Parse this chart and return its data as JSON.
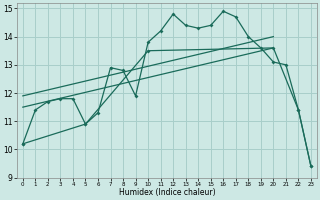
{
  "title": "",
  "xlabel": "Humidex (Indice chaleur)",
  "xlim": [
    -0.5,
    23.5
  ],
  "ylim": [
    9,
    15.2
  ],
  "yticks": [
    9,
    10,
    11,
    12,
    13,
    14,
    15
  ],
  "xticks": [
    0,
    1,
    2,
    3,
    4,
    5,
    6,
    7,
    8,
    9,
    10,
    11,
    12,
    13,
    14,
    15,
    16,
    17,
    18,
    19,
    20,
    21,
    22,
    23
  ],
  "bg_color": "#cde8e4",
  "grid_color": "#a8ceca",
  "line_color": "#1a6b5a",
  "line1_x": [
    0,
    1,
    2,
    3,
    4,
    5,
    6,
    7,
    8,
    9,
    10,
    11,
    12,
    13,
    14,
    15,
    16,
    17,
    18,
    19,
    20,
    21,
    22,
    23
  ],
  "line1_y": [
    10.2,
    11.4,
    11.7,
    11.8,
    11.8,
    10.9,
    11.3,
    12.9,
    12.8,
    11.9,
    13.8,
    14.2,
    14.8,
    14.4,
    14.3,
    14.4,
    14.9,
    14.7,
    14.0,
    13.6,
    13.1,
    13.0,
    11.4,
    9.4
  ],
  "line2_x": [
    0,
    5,
    10,
    20,
    22,
    23
  ],
  "line2_y": [
    10.2,
    10.9,
    13.5,
    13.6,
    11.4,
    9.4
  ],
  "line3_x": [
    0,
    20
  ],
  "line3_y": [
    11.5,
    13.6
  ],
  "line4_x": [
    0,
    20
  ],
  "line4_y": [
    11.9,
    14.0
  ]
}
